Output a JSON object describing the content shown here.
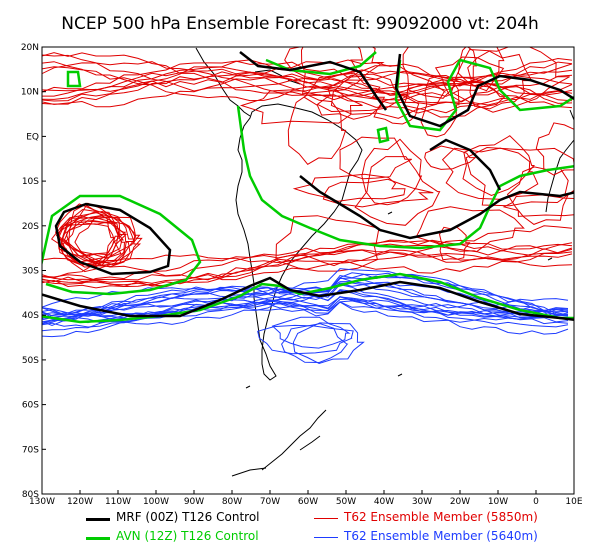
{
  "title": "NCEP 500 hPa Ensemble Forecast   ft: 99092000  vt: 204h",
  "map": {
    "lon_range": [
      -130,
      10
    ],
    "lat_range": [
      -80,
      20
    ],
    "lat_ticks": [
      {
        "value": 20,
        "label": "20N"
      },
      {
        "value": 10,
        "label": "10N"
      },
      {
        "value": 0,
        "label": "EQ"
      },
      {
        "value": -10,
        "label": "10S"
      },
      {
        "value": -20,
        "label": "20S"
      },
      {
        "value": -30,
        "label": "30S"
      },
      {
        "value": -40,
        "label": "40S"
      },
      {
        "value": -50,
        "label": "50S"
      },
      {
        "value": -60,
        "label": "60S"
      },
      {
        "value": -70,
        "label": "70S"
      },
      {
        "value": -80,
        "label": "80S"
      }
    ],
    "lon_ticks": [
      {
        "value": -130,
        "label": "130W"
      },
      {
        "value": -120,
        "label": "120W"
      },
      {
        "value": -110,
        "label": "110W"
      },
      {
        "value": -100,
        "label": "100W"
      },
      {
        "value": -90,
        "label": "90W"
      },
      {
        "value": -80,
        "label": "80W"
      },
      {
        "value": -70,
        "label": "70W"
      },
      {
        "value": -60,
        "label": "60W"
      },
      {
        "value": -50,
        "label": "50W"
      },
      {
        "value": -40,
        "label": "40W"
      },
      {
        "value": -30,
        "label": "30W"
      },
      {
        "value": -20,
        "label": "20W"
      },
      {
        "value": -10,
        "label": "10W"
      },
      {
        "value": 0,
        "label": "0"
      },
      {
        "value": 10,
        "label": "10E"
      }
    ]
  },
  "colors": {
    "mrf": "#000000",
    "avn": "#00cc00",
    "ens5850": "#e00000",
    "ens5640": "#1e3cff",
    "coast": "#000000"
  },
  "legend": [
    {
      "key": "mrf",
      "label": "MRF (00Z) T126 Control",
      "color": "#000000"
    },
    {
      "key": "ens5850",
      "label": "T62 Ensemble Member (5850m)",
      "color": "#e00000"
    },
    {
      "key": "avn",
      "label": "AVN (12Z) T126 Control",
      "color": "#00cc00"
    },
    {
      "key": "ens5640",
      "label": "T62 Ensemble Member (5640m)",
      "color": "#1e3cff"
    }
  ]
}
